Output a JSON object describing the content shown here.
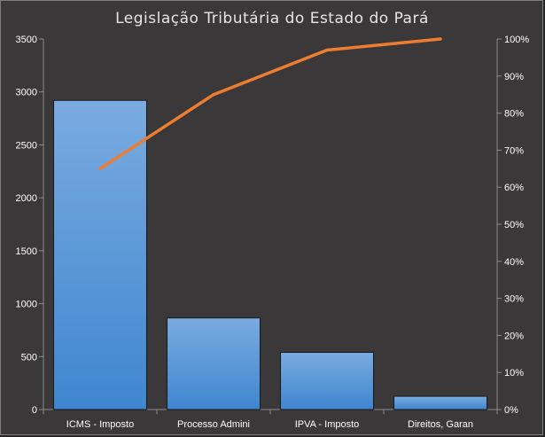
{
  "chart_data": {
    "type": "bar",
    "title": "Legislação Tributária  do Estado do Pará",
    "categories": [
      "ICMS - Imposto",
      "Processo Admini",
      "IPVA - Imposto",
      "Direitos, Garan"
    ],
    "series": [
      {
        "type": "bar",
        "values": [
          2920,
          865,
          540,
          125
        ],
        "color": "#4a8fd4"
      },
      {
        "type": "line",
        "axis": "secondary",
        "values": [
          0.65,
          0.85,
          0.97,
          1.0
        ],
        "color": "#ed7d31"
      }
    ],
    "ylim": [
      0,
      3500
    ],
    "y_ticks": [
      "0",
      "500",
      "1000",
      "1500",
      "2000",
      "2500",
      "3000",
      "3500"
    ],
    "y2lim": [
      0,
      1
    ],
    "y2_ticks": [
      "0%",
      "10%",
      "20%",
      "30%",
      "40%",
      "50%",
      "60%",
      "70%",
      "80%",
      "90%",
      "100%"
    ],
    "grid": false,
    "legend": "none",
    "background": "#3a3838",
    "plot_background": "#3a3838"
  }
}
